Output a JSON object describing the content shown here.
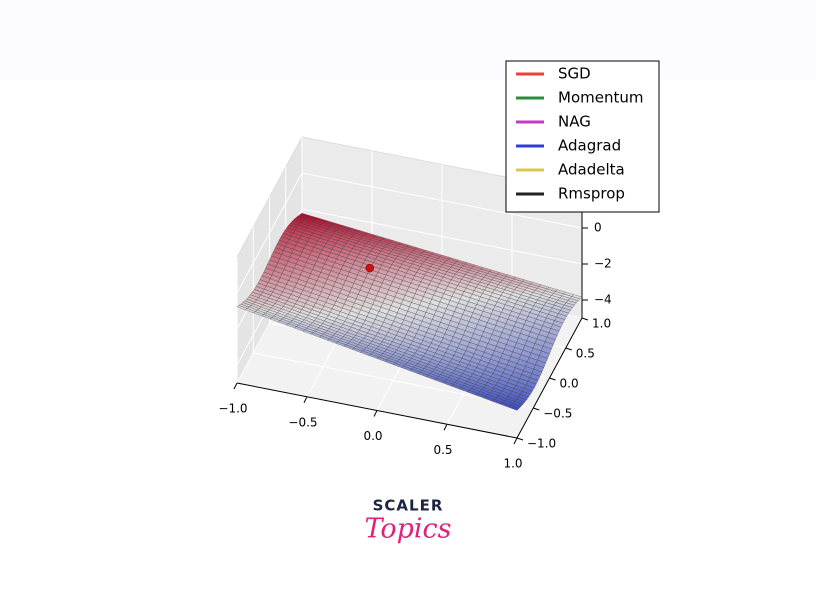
{
  "chart_data": {
    "type": "surface3d",
    "series": [
      {
        "name": "SGD",
        "color": "#e8403a"
      },
      {
        "name": "Momentum",
        "color": "#2e8b3e"
      },
      {
        "name": "NAG",
        "color": "#c03cc0"
      },
      {
        "name": "Adagrad",
        "color": "#2f3fd0"
      },
      {
        "name": "Adadelta",
        "color": "#d8c850"
      },
      {
        "name": "Rmsprop",
        "color": "#222222"
      }
    ],
    "point": {
      "x": -0.4,
      "y": 0.5,
      "z": -2.7,
      "color": "#cc1111"
    },
    "xlim": [
      -1,
      1
    ],
    "ylim": [
      -1,
      1
    ],
    "zlim": [
      -5,
      2
    ],
    "xticks": [
      {
        "value": -1,
        "label": "−1.0"
      },
      {
        "value": -0.5,
        "label": "−0.5"
      },
      {
        "value": 0,
        "label": "0.0"
      },
      {
        "value": 0.5,
        "label": "0.5"
      },
      {
        "value": 1,
        "label": "1.0"
      }
    ],
    "yticks": [
      {
        "value": -1,
        "label": "−1.0"
      },
      {
        "value": -0.5,
        "label": "−0.5"
      },
      {
        "value": 0,
        "label": "0.0"
      },
      {
        "value": 0.5,
        "label": "0.5"
      },
      {
        "value": 1,
        "label": "1.0"
      }
    ],
    "zticks": [
      {
        "value": -4,
        "label": "−4"
      },
      {
        "value": -2,
        "label": "−2"
      },
      0
    ],
    "grid": true,
    "legend": "upper right"
  },
  "logo": {
    "line1": "SCALER",
    "line2": "Topics"
  }
}
